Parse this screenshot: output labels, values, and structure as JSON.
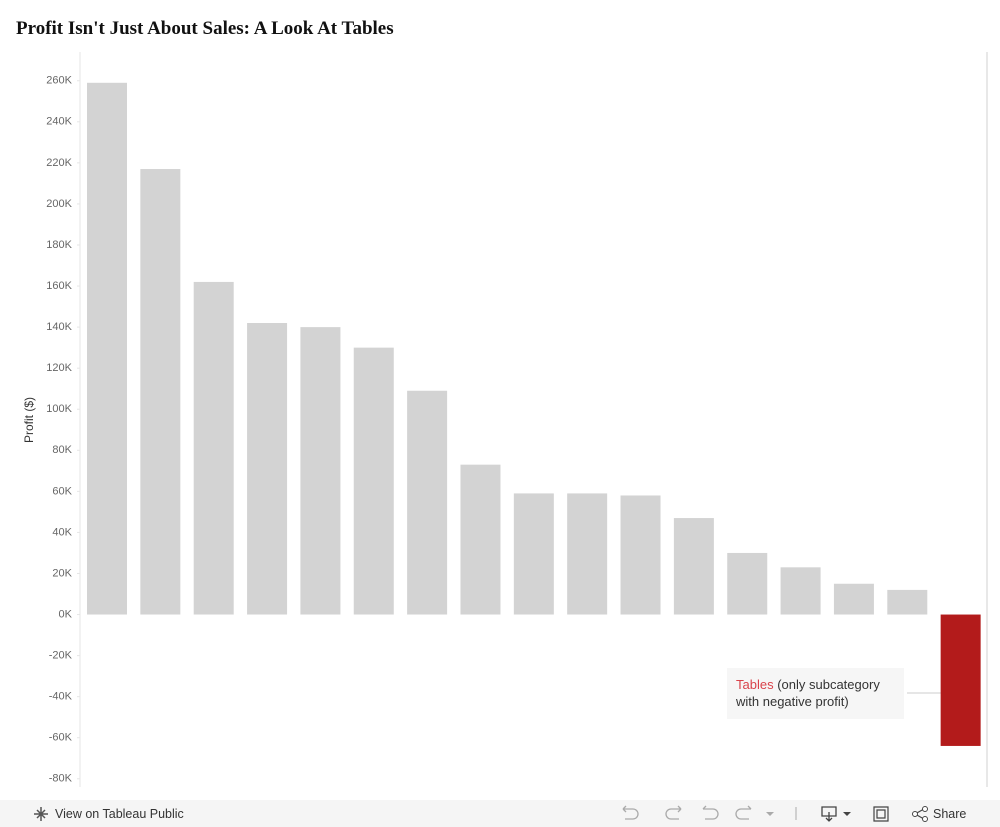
{
  "chart_data": {
    "type": "bar",
    "title": "Profit Isn't Just About Sales: A Look At Tables",
    "y_label": "Profit ($)",
    "categories": [
      null,
      null,
      null,
      null,
      null,
      null,
      null,
      null,
      null,
      null,
      null,
      null,
      null,
      null,
      null,
      null,
      null
    ],
    "values": [
      259000,
      217000,
      162000,
      142000,
      140000,
      130000,
      109000,
      73000,
      59000,
      59000,
      58000,
      47000,
      30000,
      23000,
      15000,
      12000,
      -64000
    ],
    "colors": [
      "#d3d3d3",
      "#d3d3d3",
      "#d3d3d3",
      "#d3d3d3",
      "#d3d3d3",
      "#d3d3d3",
      "#d3d3d3",
      "#d3d3d3",
      "#d3d3d3",
      "#d3d3d3",
      "#d3d3d3",
      "#d3d3d3",
      "#d3d3d3",
      "#d3d3d3",
      "#d3d3d3",
      "#d3d3d3",
      "#b31b1b"
    ],
    "ylim": [
      -84000,
      274000
    ],
    "yticks": [
      {
        "value": -80000,
        "label": "-80K"
      },
      {
        "value": -60000,
        "label": "-60K"
      },
      {
        "value": -40000,
        "label": "-40K"
      },
      {
        "value": -20000,
        "label": "-20K"
      },
      {
        "value": 0,
        "label": "0K"
      },
      {
        "value": 20000,
        "label": "20K"
      },
      {
        "value": 40000,
        "label": "40K"
      },
      {
        "value": 60000,
        "label": "60K"
      },
      {
        "value": 80000,
        "label": "80K"
      },
      {
        "value": 100000,
        "label": "100K"
      },
      {
        "value": 120000,
        "label": "120K"
      },
      {
        "value": 140000,
        "label": "140K"
      },
      {
        "value": 160000,
        "label": "160K"
      },
      {
        "value": 180000,
        "label": "180K"
      },
      {
        "value": 200000,
        "label": "200K"
      },
      {
        "value": 220000,
        "label": "220K"
      },
      {
        "value": 240000,
        "label": "240K"
      },
      {
        "value": 260000,
        "label": "260K"
      }
    ],
    "grid": false,
    "annotation": {
      "highlight": "Tables",
      "text": "(only subcategory with negative profit)"
    }
  },
  "toolbar": {
    "view_link": "View on Tableau Public",
    "share": "Share"
  }
}
